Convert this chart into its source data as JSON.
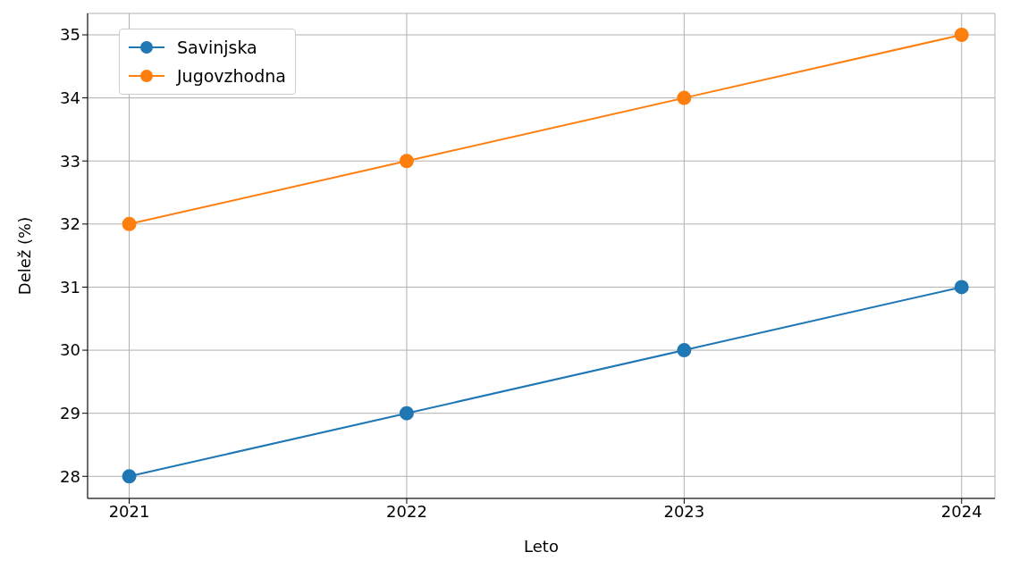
{
  "chart_data": {
    "type": "line",
    "xlabel": "Leto",
    "ylabel": "Delež (%)",
    "x": [
      2021,
      2022,
      2023,
      2024
    ],
    "series": [
      {
        "name": "Savinjska",
        "color": "#1f77b4",
        "values": [
          28,
          29,
          30,
          31
        ]
      },
      {
        "name": "Jugovzhodna",
        "color": "#ff7f0e",
        "values": [
          32,
          33,
          34,
          35
        ]
      }
    ],
    "xlim": [
      2020.85,
      2024.12
    ],
    "xticks": [
      2021,
      2022,
      2023,
      2024
    ],
    "ylim": [
      27.65,
      35.34
    ],
    "yticks": [
      28,
      29,
      30,
      31,
      32,
      33,
      34,
      35
    ],
    "grid": true,
    "legend": "top left",
    "marker": "circle",
    "line_style": "solid"
  }
}
